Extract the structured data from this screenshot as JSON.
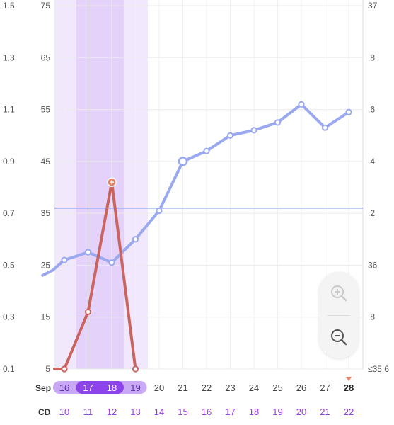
{
  "chart_data": {
    "type": "line",
    "left_axis_outer": {
      "ticks": [
        "1.5",
        "1.3",
        "1.1",
        "0.9",
        "0.7",
        "0.5",
        "0.3",
        "0.1"
      ],
      "range": [
        0.1,
        1.5
      ]
    },
    "left_axis_inner": {
      "ticks": [
        "75",
        "65",
        "55",
        "45",
        "35",
        "25",
        "15",
        "5"
      ],
      "range": [
        5,
        75
      ]
    },
    "right_axis": {
      "ticks": [
        "37",
        ".8",
        ".6",
        ".4",
        ".2",
        "36",
        ".8",
        "≤35.6"
      ],
      "range": [
        35.6,
        37.0
      ]
    },
    "x_row_month": "Sep",
    "x_row_cd": "CD",
    "dates": [
      "16",
      "17",
      "18",
      "19",
      "20",
      "21",
      "22",
      "23",
      "24",
      "25",
      "26",
      "27",
      "28"
    ],
    "cycle_days": [
      "10",
      "11",
      "12",
      "13",
      "14",
      "15",
      "16",
      "17",
      "18",
      "19",
      "20",
      "21",
      "22"
    ],
    "today_date": "28",
    "fertile_window_dates": [
      "16",
      "17",
      "18",
      "19"
    ],
    "peak_window_dates": [
      "17",
      "18"
    ],
    "series": [
      {
        "name": "",
        "color": "#9aa9ef",
        "axis": "right",
        "x": [
          "15.5",
          "16",
          "17",
          "18",
          "19",
          "20",
          "21",
          "22",
          "23",
          "24",
          "25",
          "26",
          "27",
          "28"
        ],
        "values": [
          35.98,
          36.02,
          36.05,
          36.01,
          36.1,
          36.21,
          36.4,
          36.44,
          36.5,
          36.52,
          36.55,
          36.62,
          36.53,
          36.59
        ]
      },
      {
        "name": "",
        "color": "#c96461",
        "axis": "left_outer",
        "x": [
          "16",
          "17",
          "18",
          "19"
        ],
        "values": [
          0.1,
          0.32,
          0.82,
          0.1
        ]
      }
    ],
    "coverline": {
      "value": 36.22,
      "color": "#9aa9ef",
      "axis": "right"
    },
    "grid": true
  },
  "zoom": {
    "in_icon": "zoom-in-icon",
    "out_icon": "zoom-out-icon"
  }
}
